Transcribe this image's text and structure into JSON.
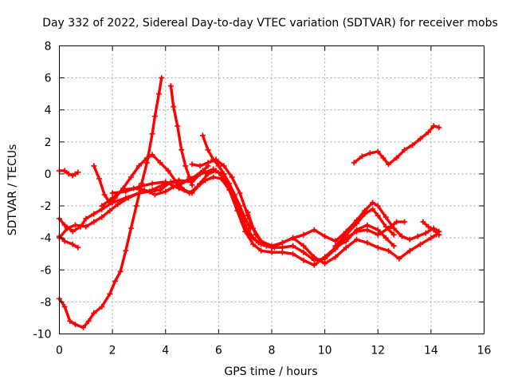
{
  "chart_data": {
    "type": "scatter",
    "title": "Day 332 of 2022, Sidereal Day-to-day VTEC variation (SDTVAR) for receiver mobs",
    "xlabel": "GPS time / hours",
    "ylabel": "SDTVAR / TECUs",
    "xlim": [
      0,
      16
    ],
    "ylim": [
      -10,
      8
    ],
    "x_ticks": [
      0,
      2,
      4,
      6,
      8,
      10,
      12,
      14,
      16
    ],
    "y_ticks": [
      -10,
      -8,
      -6,
      -4,
      -2,
      0,
      2,
      4,
      6,
      8
    ],
    "grid": true,
    "marker": "+",
    "color": "#ff0000",
    "series": [
      {
        "name": "arc-rise-peak",
        "points": [
          [
            0,
            -7.8
          ],
          [
            0.2,
            -8.3
          ],
          [
            0.4,
            -9.2
          ],
          [
            0.6,
            -9.4
          ],
          [
            0.9,
            -9.6
          ],
          [
            1.1,
            -9.2
          ],
          [
            1.3,
            -8.7
          ],
          [
            1.6,
            -8.3
          ],
          [
            1.9,
            -7.5
          ],
          [
            2.1,
            -6.7
          ],
          [
            2.3,
            -6.1
          ],
          [
            2.5,
            -4.8
          ],
          [
            2.7,
            -3.4
          ],
          [
            2.9,
            -2.0
          ],
          [
            3.1,
            -0.6
          ],
          [
            3.3,
            0.7
          ],
          [
            3.5,
            2.5
          ],
          [
            3.6,
            3.6
          ],
          [
            3.75,
            5.0
          ],
          [
            3.85,
            6.0
          ]
        ]
      },
      {
        "name": "arc-fall-peak",
        "points": [
          [
            4.2,
            5.5
          ],
          [
            4.3,
            4.2
          ],
          [
            4.45,
            3.0
          ],
          [
            4.6,
            1.5
          ],
          [
            4.75,
            0.5
          ],
          [
            4.9,
            -0.2
          ],
          [
            5.0,
            -0.7
          ]
        ]
      },
      {
        "name": "arc-morning-a",
        "points": [
          [
            0,
            0.2
          ],
          [
            0.2,
            0.2
          ],
          [
            0.35,
            0.0
          ],
          [
            0.5,
            -0.1
          ],
          [
            0.6,
            0.0
          ],
          [
            0.7,
            0.1
          ]
        ]
      },
      {
        "name": "arc-morning-b",
        "points": [
          [
            0,
            -2.8
          ],
          [
            0.2,
            -3.2
          ],
          [
            0.5,
            -3.6
          ],
          [
            0.8,
            -3.3
          ],
          [
            1.0,
            -2.8
          ],
          [
            1.3,
            -2.5
          ],
          [
            1.6,
            -2.2
          ],
          [
            2.0,
            -1.8
          ],
          [
            2.5,
            -1.5
          ],
          [
            3.0,
            -1.2
          ],
          [
            3.5,
            -1.0
          ],
          [
            4.0,
            -0.6
          ],
          [
            4.5,
            -0.4
          ],
          [
            5.0,
            -0.5
          ],
          [
            5.3,
            0.0
          ],
          [
            5.6,
            0.5
          ]
        ]
      },
      {
        "name": "arc-morning-c",
        "points": [
          [
            0,
            -3.9
          ],
          [
            0.2,
            -4.2
          ],
          [
            0.5,
            -4.4
          ],
          [
            0.7,
            -4.6
          ]
        ]
      },
      {
        "name": "arc-morning-d",
        "points": [
          [
            0,
            -4.0
          ],
          [
            0.3,
            -3.4
          ],
          [
            0.6,
            -3.2
          ],
          [
            1.0,
            -3.3
          ],
          [
            1.3,
            -3.0
          ],
          [
            1.6,
            -2.7
          ],
          [
            1.9,
            -2.3
          ],
          [
            2.2,
            -1.9
          ],
          [
            2.6,
            -1.5
          ],
          [
            3.0,
            -1.2
          ],
          [
            3.4,
            -1.1
          ],
          [
            3.8,
            -1.0
          ],
          [
            4.2,
            -0.5
          ],
          [
            4.6,
            -0.6
          ],
          [
            5.0,
            -0.3
          ],
          [
            5.4,
            0.2
          ]
        ]
      },
      {
        "name": "arc-hump",
        "points": [
          [
            1.3,
            0.5
          ],
          [
            1.5,
            -0.3
          ],
          [
            1.7,
            -1.3
          ],
          [
            1.9,
            -1.8
          ],
          [
            2.1,
            -1.5
          ],
          [
            2.4,
            -0.9
          ],
          [
            2.7,
            -0.2
          ],
          [
            3.0,
            0.5
          ],
          [
            3.3,
            1.0
          ],
          [
            3.5,
            1.2
          ],
          [
            3.8,
            0.7
          ],
          [
            4.1,
            0.2
          ],
          [
            4.4,
            -0.5
          ],
          [
            4.7,
            -1.0
          ],
          [
            5.0,
            -1.2
          ],
          [
            5.3,
            -0.6
          ],
          [
            5.6,
            0.0
          ],
          [
            5.9,
            0.2
          ],
          [
            6.1,
            -0.1
          ],
          [
            6.3,
            -0.6
          ],
          [
            6.6,
            -1.5
          ],
          [
            6.9,
            -3.0
          ],
          [
            7.2,
            -3.9
          ],
          [
            7.5,
            -4.3
          ],
          [
            7.8,
            -4.5
          ],
          [
            8.1,
            -4.6
          ]
        ]
      },
      {
        "name": "arc-cluster-1",
        "points": [
          [
            1.6,
            -2.0
          ],
          [
            2.0,
            -1.5
          ],
          [
            2.4,
            -1.0
          ],
          [
            2.8,
            -0.9
          ],
          [
            3.2,
            -1.0
          ],
          [
            3.6,
            -1.3
          ],
          [
            4.0,
            -1.1
          ],
          [
            4.3,
            -0.8
          ],
          [
            4.6,
            -0.6
          ],
          [
            4.9,
            -0.3
          ],
          [
            5.2,
            -0.1
          ],
          [
            5.5,
            0.1
          ],
          [
            5.8,
            0.3
          ],
          [
            6.1,
            0.0
          ],
          [
            6.4,
            -0.8
          ],
          [
            6.7,
            -2.0
          ],
          [
            7.0,
            -3.2
          ],
          [
            7.3,
            -4.0
          ],
          [
            7.6,
            -4.4
          ],
          [
            8.0,
            -4.6
          ],
          [
            8.4,
            -4.6
          ],
          [
            8.8,
            -4.5
          ],
          [
            9.2,
            -4.9
          ],
          [
            9.6,
            -5.4
          ],
          [
            10.0,
            -5.3
          ],
          [
            10.4,
            -4.7
          ],
          [
            10.8,
            -4.0
          ],
          [
            11.2,
            -3.6
          ],
          [
            11.6,
            -3.5
          ],
          [
            12.0,
            -3.8
          ],
          [
            12.4,
            -3.4
          ],
          [
            12.7,
            -3.0
          ],
          [
            13.0,
            -3.0
          ]
        ]
      },
      {
        "name": "arc-cluster-2",
        "points": [
          [
            2.0,
            -1.2
          ],
          [
            2.5,
            -1.1
          ],
          [
            3.0,
            -0.8
          ],
          [
            3.5,
            -0.6
          ],
          [
            4.0,
            -0.5
          ],
          [
            4.5,
            -0.9
          ],
          [
            4.9,
            -1.2
          ],
          [
            5.2,
            -0.8
          ],
          [
            5.5,
            -0.4
          ],
          [
            5.8,
            -0.2
          ],
          [
            6.1,
            -0.3
          ],
          [
            6.4,
            -1.0
          ],
          [
            6.7,
            -2.3
          ],
          [
            7.0,
            -3.6
          ],
          [
            7.3,
            -4.4
          ],
          [
            7.6,
            -4.8
          ],
          [
            8.0,
            -4.9
          ],
          [
            8.4,
            -4.9
          ],
          [
            8.8,
            -5.0
          ],
          [
            9.2,
            -5.4
          ],
          [
            9.6,
            -5.7
          ],
          [
            10.0,
            -5.2
          ],
          [
            10.4,
            -4.6
          ],
          [
            10.8,
            -4.2
          ],
          [
            11.2,
            -3.5
          ],
          [
            11.6,
            -3.2
          ],
          [
            12.0,
            -3.5
          ],
          [
            12.3,
            -4.0
          ],
          [
            12.6,
            -4.5
          ]
        ]
      },
      {
        "name": "arc-cluster-3",
        "points": [
          [
            5.0,
            0.6
          ],
          [
            5.3,
            0.5
          ],
          [
            5.6,
            0.7
          ],
          [
            5.9,
            0.9
          ],
          [
            6.2,
            0.5
          ],
          [
            6.5,
            -0.2
          ],
          [
            6.8,
            -1.2
          ],
          [
            7.1,
            -2.6
          ],
          [
            7.4,
            -3.8
          ],
          [
            7.7,
            -4.4
          ],
          [
            8.0,
            -4.6
          ],
          [
            8.4,
            -4.3
          ],
          [
            8.8,
            -4.0
          ],
          [
            9.2,
            -4.5
          ],
          [
            9.6,
            -5.2
          ],
          [
            10.0,
            -5.6
          ],
          [
            10.4,
            -5.2
          ],
          [
            10.8,
            -4.6
          ],
          [
            11.2,
            -4.1
          ],
          [
            11.6,
            -4.3
          ],
          [
            12.0,
            -4.6
          ],
          [
            12.4,
            -4.8
          ],
          [
            12.8,
            -5.3
          ],
          [
            13.2,
            -4.8
          ],
          [
            13.6,
            -4.4
          ],
          [
            14.0,
            -4.0
          ],
          [
            14.2,
            -3.8
          ]
        ]
      },
      {
        "name": "arc-late-peak",
        "points": [
          [
            5.4,
            2.4
          ],
          [
            5.6,
            1.5
          ],
          [
            5.8,
            0.9
          ],
          [
            6.0,
            0.5
          ],
          [
            6.2,
            0.0
          ],
          [
            6.4,
            -0.6
          ],
          [
            6.6,
            -1.3
          ],
          [
            6.8,
            -2.0
          ],
          [
            7.0,
            -2.8
          ],
          [
            7.2,
            -3.4
          ]
        ]
      },
      {
        "name": "arc-mid-1",
        "points": [
          [
            7.1,
            -2.4
          ],
          [
            7.3,
            -3.4
          ],
          [
            7.6,
            -4.2
          ],
          [
            8.0,
            -4.5
          ],
          [
            8.4,
            -4.3
          ],
          [
            8.8,
            -4.0
          ],
          [
            9.2,
            -3.8
          ],
          [
            9.6,
            -3.5
          ],
          [
            10.0,
            -3.9
          ],
          [
            10.4,
            -4.2
          ],
          [
            10.8,
            -3.6
          ],
          [
            11.2,
            -2.9
          ],
          [
            11.5,
            -2.3
          ],
          [
            11.8,
            -1.8
          ],
          [
            12.0,
            -2.0
          ],
          [
            12.3,
            -2.7
          ],
          [
            12.6,
            -3.4
          ],
          [
            12.9,
            -3.9
          ],
          [
            13.2,
            -4.1
          ],
          [
            13.5,
            -3.9
          ],
          [
            13.8,
            -3.7
          ],
          [
            14.1,
            -3.4
          ],
          [
            14.3,
            -3.6
          ]
        ]
      },
      {
        "name": "arc-mid-2",
        "points": [
          [
            10.4,
            -4.5
          ],
          [
            10.8,
            -3.8
          ],
          [
            11.2,
            -3.1
          ],
          [
            11.5,
            -2.5
          ],
          [
            11.8,
            -2.2
          ],
          [
            12.0,
            -2.6
          ],
          [
            12.3,
            -3.3
          ],
          [
            12.6,
            -3.8
          ]
        ]
      },
      {
        "name": "arc-late-2",
        "points": [
          [
            13.7,
            -3.0
          ],
          [
            13.9,
            -3.3
          ],
          [
            14.1,
            -3.5
          ],
          [
            14.3,
            -3.8
          ]
        ]
      },
      {
        "name": "arc-rising-end",
        "points": [
          [
            11.1,
            0.7
          ],
          [
            11.4,
            1.1
          ],
          [
            11.7,
            1.3
          ],
          [
            12.0,
            1.4
          ],
          [
            12.2,
            1.0
          ],
          [
            12.4,
            0.6
          ],
          [
            12.7,
            1.0
          ],
          [
            13.0,
            1.5
          ],
          [
            13.3,
            1.8
          ],
          [
            13.6,
            2.2
          ],
          [
            13.9,
            2.6
          ],
          [
            14.1,
            3.0
          ],
          [
            14.3,
            2.9
          ]
        ]
      }
    ]
  }
}
